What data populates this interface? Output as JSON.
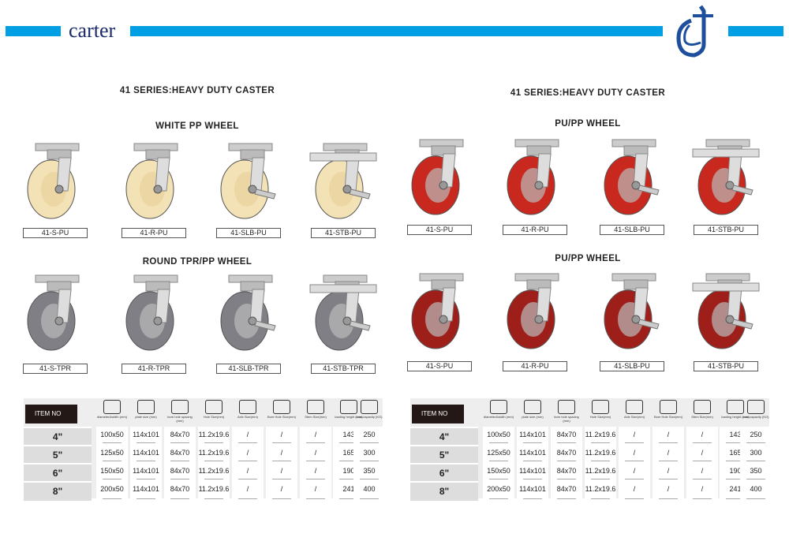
{
  "header": {
    "brand": "carter",
    "accent": "#009fe3",
    "logo_color": "#1d4f9c"
  },
  "left": {
    "series_title": "41 SERIES:HEAVY DUTY CASTER",
    "group1": {
      "title": "WHITE PP WHEEL",
      "wheel_color": "#f3e2b5",
      "products": [
        "41-S-PU",
        "41-R-PU",
        "41-SLB-PU",
        "41-STB-PU"
      ]
    },
    "group2": {
      "title": "ROUND TPR/PP WHEEL",
      "wheel_color": "#7f7f85",
      "products": [
        "41-S-TPR",
        "41-R-TPR",
        "41-SLB-TPR",
        "41-STB-TPR"
      ]
    }
  },
  "right": {
    "series_title": "41 SERIES:HEAVY DUTY CASTER",
    "group1": {
      "title": "PU/PP WHEEL",
      "wheel_color": "#c8281e",
      "products": [
        "41-S-PU",
        "41-R-PU",
        "41-SLB-PU",
        "41-STB-PU"
      ]
    },
    "group2": {
      "title": "PU/PP WHEEL",
      "wheel_color": "#9e1f1a",
      "products": [
        "41-S-PU",
        "41-R-PU",
        "41-SLB-PU",
        "41-STB-PU"
      ]
    }
  },
  "table": {
    "item_no": "ITEM NO",
    "columns": [
      "diameter&width (mm)",
      "plate size (mm)",
      "bore hole spacing (mm)",
      "Hole Size(mm)",
      "Axle Size(mm)",
      "Bore Hole Size(mm)",
      "Stem Size(mm)",
      "loading height (mm)",
      "load capacity (KG)"
    ],
    "rows": [
      {
        "size": "4\"",
        "values": [
          "100x50",
          "114x101",
          "84x70",
          "11.2x19.6",
          "/",
          "/",
          "/",
          "143",
          "250"
        ]
      },
      {
        "size": "5\"",
        "values": [
          "125x50",
          "114x101",
          "84x70",
          "11.2x19.6",
          "/",
          "/",
          "/",
          "165",
          "300"
        ]
      },
      {
        "size": "6\"",
        "values": [
          "150x50",
          "114x101",
          "84x70",
          "11.2x19.6",
          "/",
          "/",
          "/",
          "190",
          "350"
        ]
      },
      {
        "size": "8\"",
        "values": [
          "200x50",
          "114x101",
          "84x70",
          "11.2x19.6",
          "/",
          "/",
          "/",
          "241",
          "400"
        ]
      }
    ]
  }
}
